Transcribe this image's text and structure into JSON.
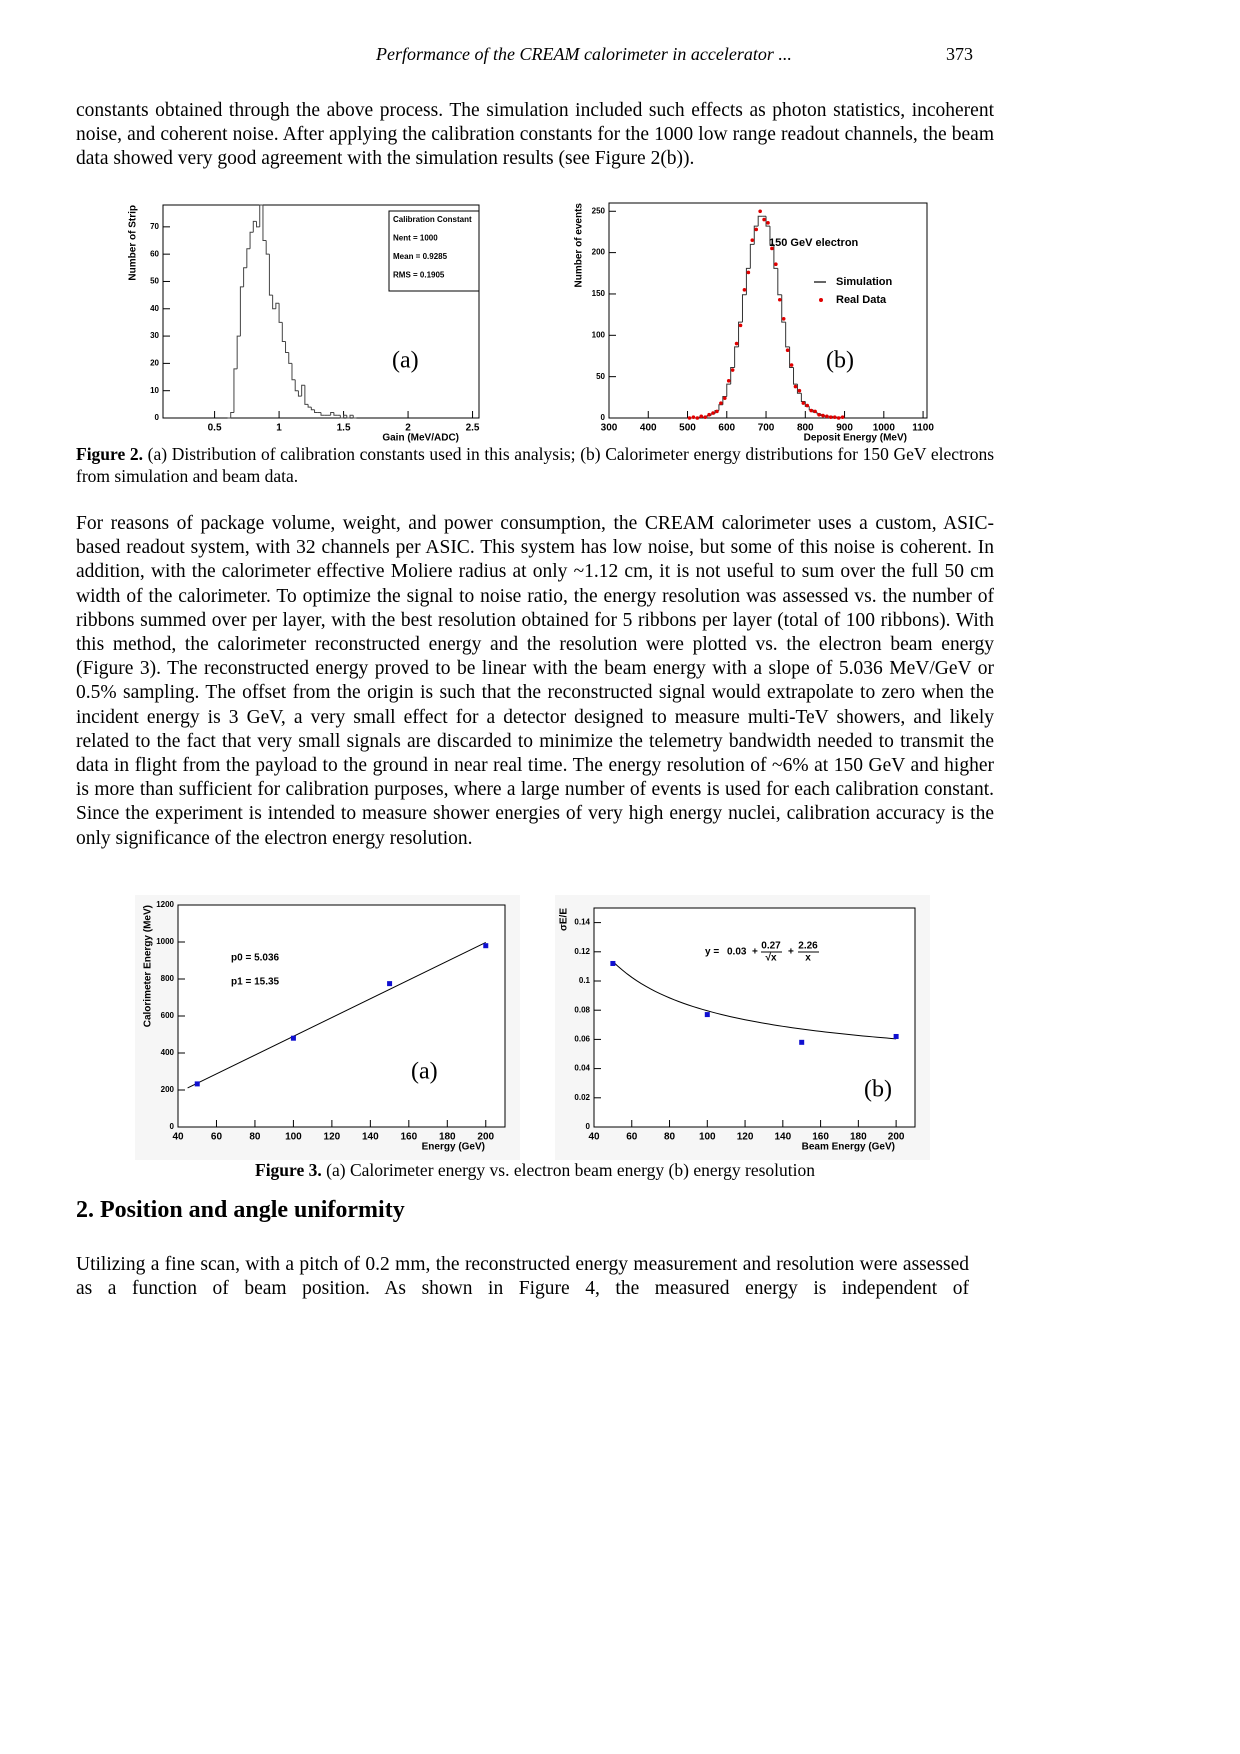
{
  "header": {
    "title": "Performance of the CREAM calorimeter in accelerator ...",
    "page": 373
  },
  "paragraphs": [
    "constants obtained through the above process.  The simulation included such effects as photon statistics, incoherent noise, and coherent noise.  After applying the calibration constants for the 1000 low range readout channels, the beam data showed very good agreement with the simulation results (see Figure 2(b)).",
    "For reasons of package volume, weight, and power consumption, the CREAM calorimeter uses a custom, ASIC-based readout system, with 32 channels per ASIC.  This system has low noise, but some of this noise is coherent.  In addition, with the calorimeter effective Moliere radius at only ~1.12 cm, it is not useful to sum over the full 50 cm width of the calorimeter.  To optimize the signal to noise ratio, the energy resolution was assessed vs. the number of ribbons summed over per layer, with the best resolution obtained for 5 ribbons per layer (total of 100 ribbons).  With this method, the calorimeter reconstructed energy and the resolution were plotted vs. the electron beam energy (Figure 3).  The reconstructed energy proved to be linear with the beam energy with a slope of 5.036 MeV/GeV or 0.5% sampling.  The offset from the origin is such that the reconstructed signal would extrapolate to zero when the incident energy is 3 GeV, a very small effect for a detector designed to measure multi-TeV showers, and likely related to the fact that very small signals are discarded to minimize the telemetry bandwidth needed to transmit the data in flight from the payload to the ground in near real time.  The energy resolution of ~6% at 150 GeV and higher is more than sufficient for calibration purposes, where a large number of events is used for each calibration constant.  Since the experiment is intended to measure shower energies of very high energy nuclei, calibration accuracy is the only significance of the electron energy resolution."
  ],
  "figures": [
    {
      "label": "Figure 2.",
      "text": "(a) Distribution of calibration constants used in this analysis; (b) Calorimeter energy distributions for 150 GeV electrons from simulation and beam data."
    },
    {
      "label": "Figure 3.",
      "text": "(a) Calorimeter energy vs. electron beam energy (b) energy resolution"
    }
  ],
  "section": {
    "title": "2. Position and angle uniformity",
    "text": "Utilizing a fine scan, with a pitch of 0.2 mm, the reconstructed energy measurement and resolution were assessed as a function of beam position.  As shown  in  Figure 4,  the measured energy  is independent  of"
  },
  "chart_data": [
    {
      "type": "histogram",
      "panel_label": "(a)",
      "x_label": "Gain (MeV/ADC)",
      "y_label": "Number of Strip",
      "bins": [
        0.6,
        0.625,
        0.65,
        0.675,
        0.7,
        0.725,
        0.75,
        0.775,
        0.8,
        0.825,
        0.85,
        0.875,
        0.9,
        0.925,
        0.95,
        0.975,
        1.0,
        1.025,
        1.05,
        1.075,
        1.1,
        1.125,
        1.15,
        1.175,
        1.2,
        1.225,
        1.25,
        1.275,
        1.3,
        1.325,
        1.35,
        1.375,
        1.4,
        1.425,
        1.45,
        1.475,
        1.5,
        1.525,
        1.55,
        1.575,
        1.6
      ],
      "values": [
        0,
        2,
        18,
        30,
        48,
        55,
        62,
        68,
        72,
        70,
        78,
        65,
        60,
        45,
        40,
        42,
        35,
        28,
        24,
        20,
        14,
        10,
        8,
        12,
        5,
        4,
        3,
        2,
        2,
        1,
        1,
        1,
        2,
        1,
        1,
        0,
        1,
        0,
        1,
        0
      ],
      "color": "#444444",
      "stats": [
        "Calibration Constant",
        "Nent = 1000",
        "Mean  = 0.9285",
        "RMS   = 0.1905"
      ],
      "xlim": [
        0.1,
        2.55
      ],
      "xticks": [
        0.5,
        1,
        1.5,
        2,
        2.5
      ],
      "ylim": [
        0,
        78
      ],
      "yticks": [
        0,
        10,
        20,
        30,
        40,
        50,
        60,
        70
      ]
    },
    {
      "type": "histogram",
      "panel_label": "(b)",
      "x_label": "Deposit Energy (MeV)",
      "y_label": "Number of events",
      "legend_title": "150 GeV electron",
      "bins": [
        500,
        510,
        520,
        530,
        540,
        550,
        560,
        570,
        580,
        590,
        600,
        610,
        620,
        630,
        640,
        650,
        660,
        670,
        680,
        690,
        700,
        710,
        720,
        730,
        740,
        750,
        760,
        770,
        780,
        790,
        800,
        810,
        820,
        830,
        840,
        850,
        860,
        870,
        880,
        890,
        900
      ],
      "series": [
        {
          "name": "Simulation",
          "color": "#333333",
          "style": "step",
          "values": [
            0,
            0,
            0,
            1,
            1,
            3,
            5,
            9,
            16,
            26,
            41,
            61,
            86,
            116,
            149,
            181,
            210,
            232,
            244,
            244,
            232,
            210,
            181,
            149,
            116,
            86,
            61,
            41,
            30,
            20,
            14,
            10,
            7,
            5,
            3,
            2,
            2,
            1,
            1,
            0
          ]
        },
        {
          "name": "Real Data",
          "color": "#e00000",
          "style": "points",
          "values": [
            0,
            1,
            0,
            2,
            1,
            4,
            6,
            8,
            18,
            24,
            45,
            58,
            90,
            112,
            155,
            176,
            215,
            228,
            250,
            240,
            236,
            205,
            186,
            143,
            120,
            82,
            64,
            38,
            33,
            18,
            15,
            9,
            8,
            4,
            3,
            2,
            1,
            1,
            0,
            1
          ]
        }
      ],
      "xlim": [
        300,
        1110
      ],
      "xticks": [
        300,
        400,
        500,
        600,
        700,
        800,
        900,
        1000,
        1100
      ],
      "ylim": [
        0,
        260
      ],
      "yticks": [
        0,
        50,
        100,
        150,
        200,
        250
      ]
    },
    {
      "type": "scatter",
      "panel_label": "(a)",
      "x_label": "Energy (GeV)",
      "y_label": "Calorimeter Energy (MeV)",
      "fit_text": [
        "p0 = 5.036",
        "p1 =  15.35"
      ],
      "x": [
        50,
        100,
        150,
        200
      ],
      "values": [
        233,
        480,
        775,
        980
      ],
      "color": "#1010d0",
      "xlim": [
        40,
        210
      ],
      "xticks": [
        40,
        60,
        80,
        100,
        120,
        140,
        160,
        180,
        200
      ],
      "ylim": [
        0,
        1200
      ],
      "yticks": [
        0,
        200,
        400,
        600,
        800,
        1000,
        1200
      ]
    },
    {
      "type": "scatter",
      "panel_label": "(b)",
      "x_label": "Beam Energy (GeV)",
      "y_label": "σE/E",
      "fit": {
        "lhs": "y =",
        "a": 0.03,
        "op": "+",
        "b": 0.27,
        "b_den": "√x",
        "c": 2.26,
        "c_den": "x"
      },
      "x": [
        50,
        100,
        150,
        200
      ],
      "values": [
        0.112,
        0.077,
        0.058,
        0.062
      ],
      "color": "#1010d0",
      "xlim": [
        40,
        210
      ],
      "xticks": [
        40,
        60,
        80,
        100,
        120,
        140,
        160,
        180,
        200
      ],
      "ylim": [
        0,
        0.15
      ],
      "yticks": [
        0,
        0.02,
        0.04,
        0.06,
        0.08,
        0.1,
        0.12,
        0.14
      ]
    }
  ]
}
